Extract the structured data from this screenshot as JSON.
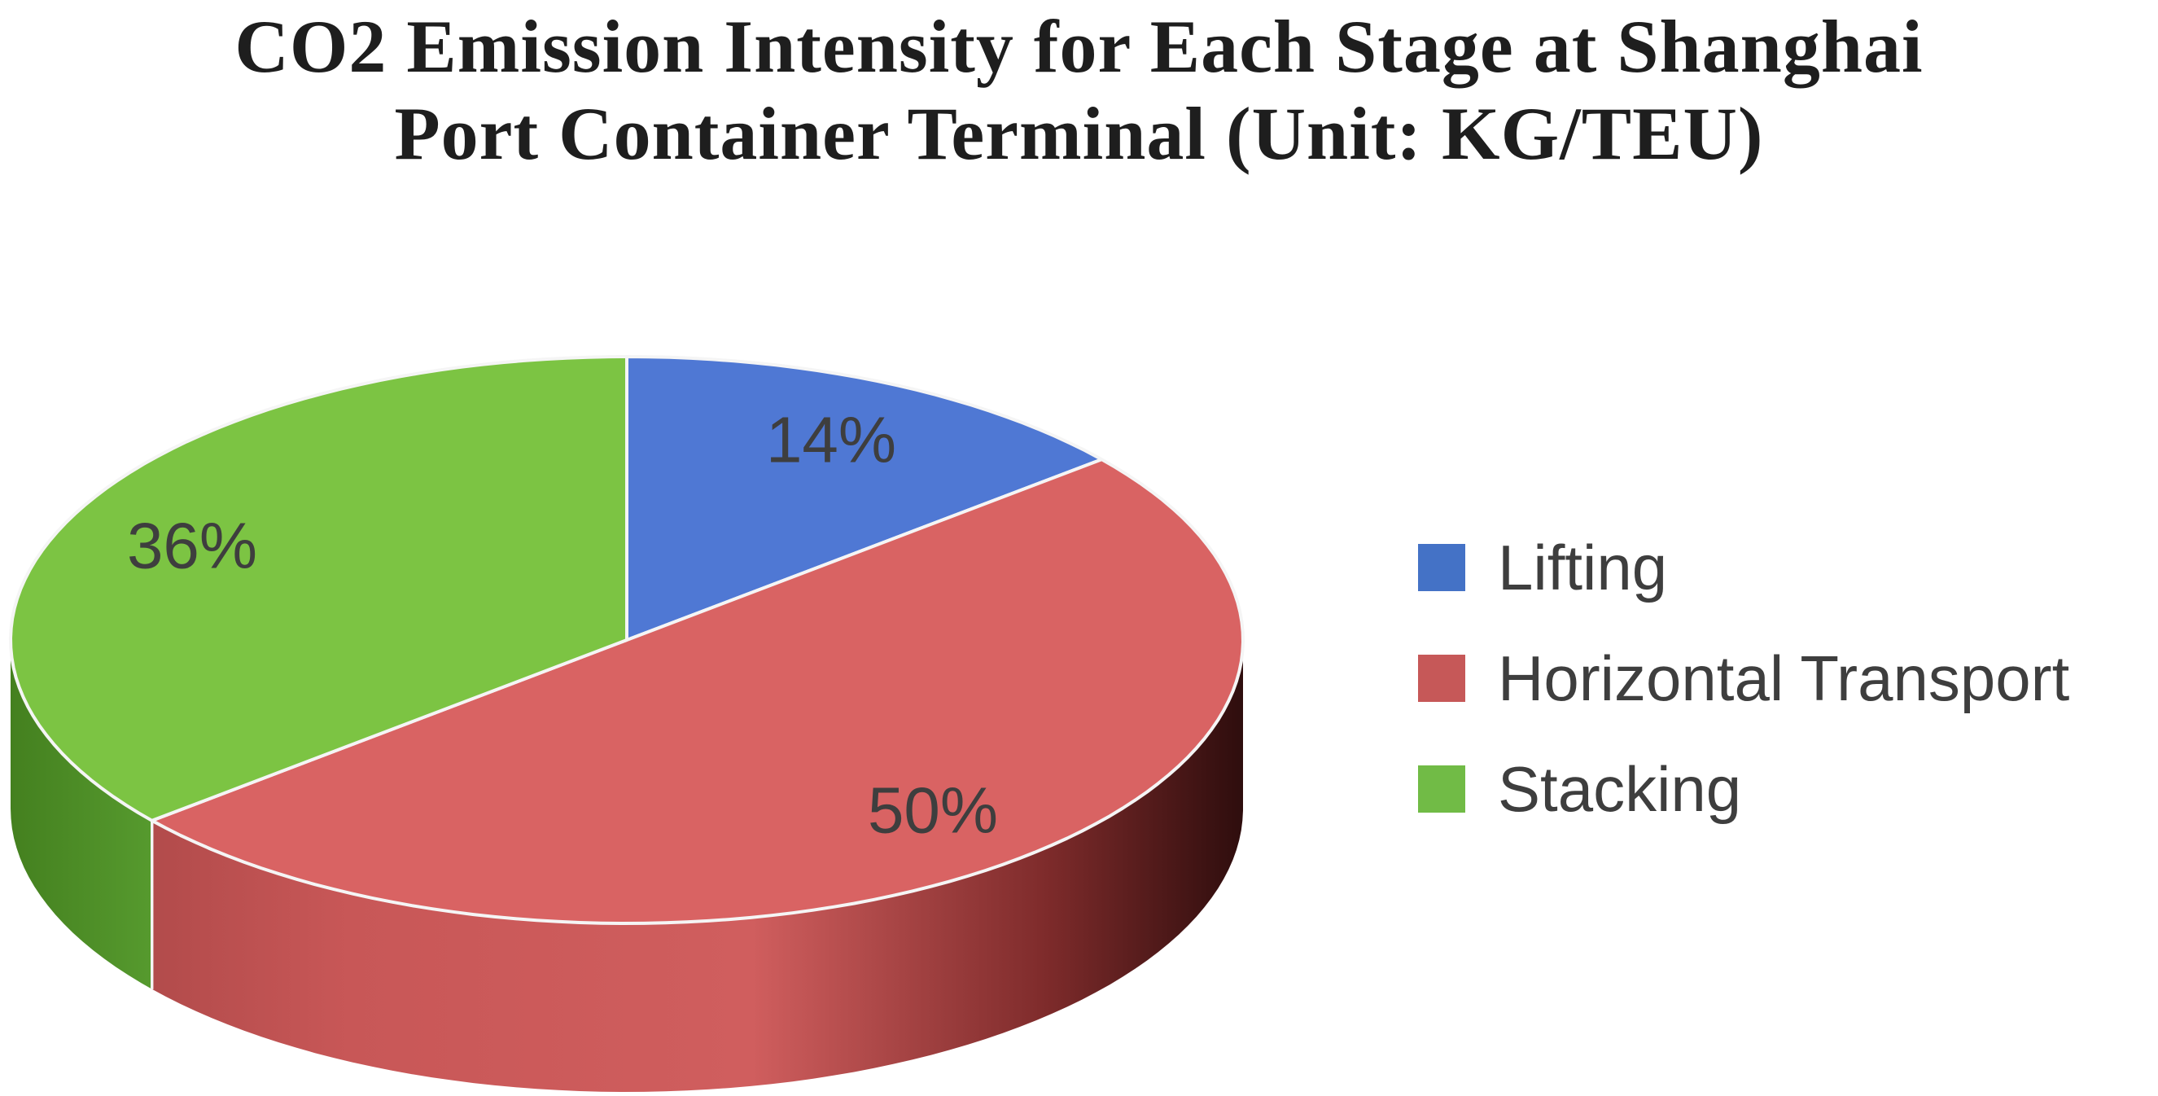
{
  "title": {
    "line1": "CO2 Emission Intensity for Each Stage at Shanghai",
    "line2": "Port Container Terminal (Unit: KG/TEU)"
  },
  "chart_data": {
    "type": "pie",
    "style": "3d-pie",
    "title": "CO2 Emission Intensity for Each Stage at Shanghai Port Container Terminal (Unit: KG/TEU)",
    "unit": "KG/TEU",
    "start_angle_deg": 0,
    "direction": "clockwise",
    "legend_position": "right",
    "grid": false,
    "series": [
      {
        "name": "Lifting",
        "value_pct": 14,
        "label": "14%",
        "top_color": "#4F78D4",
        "legend_color": "#4472C6",
        "side_gradient": []
      },
      {
        "name": "Horizontal Transport",
        "value_pct": 50,
        "label": "50%",
        "top_color": "#D96363",
        "legend_color": "#C65858",
        "side_gradient": [
          {
            "offset": 0,
            "color": "#B24B4B"
          },
          {
            "offset": 0.18,
            "color": "#C85757"
          },
          {
            "offset": 0.55,
            "color": "#D05E5E"
          },
          {
            "offset": 0.82,
            "color": "#7E2B2B"
          },
          {
            "offset": 1,
            "color": "#2E0D0D"
          }
        ]
      },
      {
        "name": "Stacking",
        "value_pct": 36,
        "label": "36%",
        "top_color": "#7CC443",
        "legend_color": "#71BB46",
        "side_gradient": [
          {
            "offset": 0,
            "color": "#44801F"
          },
          {
            "offset": 1,
            "color": "#569A2E"
          }
        ]
      }
    ],
    "label_color": "#3E3E3E",
    "seam_color": "#F5F5F5"
  }
}
